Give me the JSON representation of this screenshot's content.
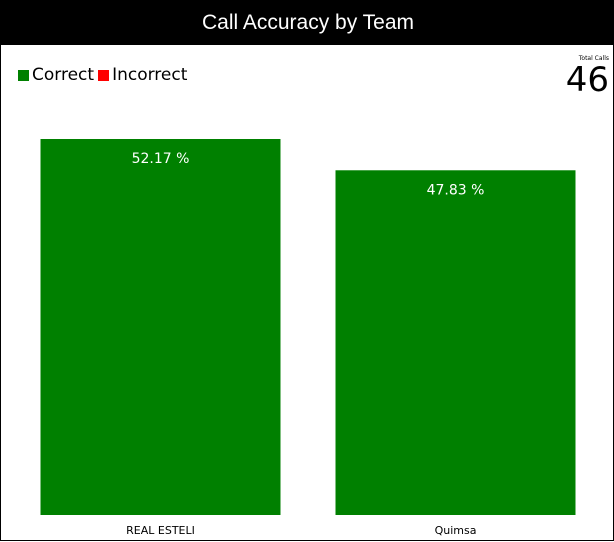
{
  "title": "Call Accuracy by Team",
  "legend": {
    "items": [
      {
        "label": "Correct",
        "color": "#008000"
      },
      {
        "label": "Incorrect",
        "color": "#ff0000"
      }
    ]
  },
  "kpi": {
    "label": "Total Calls",
    "value": "46"
  },
  "chart_data": {
    "type": "bar",
    "categories": [
      "REAL ESTELI",
      "Quimsa"
    ],
    "series": [
      {
        "name": "Correct",
        "color": "#008000",
        "values": [
          52.17,
          47.83
        ]
      },
      {
        "name": "Incorrect",
        "color": "#ff0000",
        "values": [
          0,
          0
        ]
      }
    ],
    "data_labels": [
      "52.17 %",
      "47.83 %"
    ],
    "title": "Call Accuracy by Team",
    "xlabel": "",
    "ylabel": "",
    "ylim": [
      0,
      52.17
    ],
    "grid": false,
    "legend_position": "top-left"
  }
}
